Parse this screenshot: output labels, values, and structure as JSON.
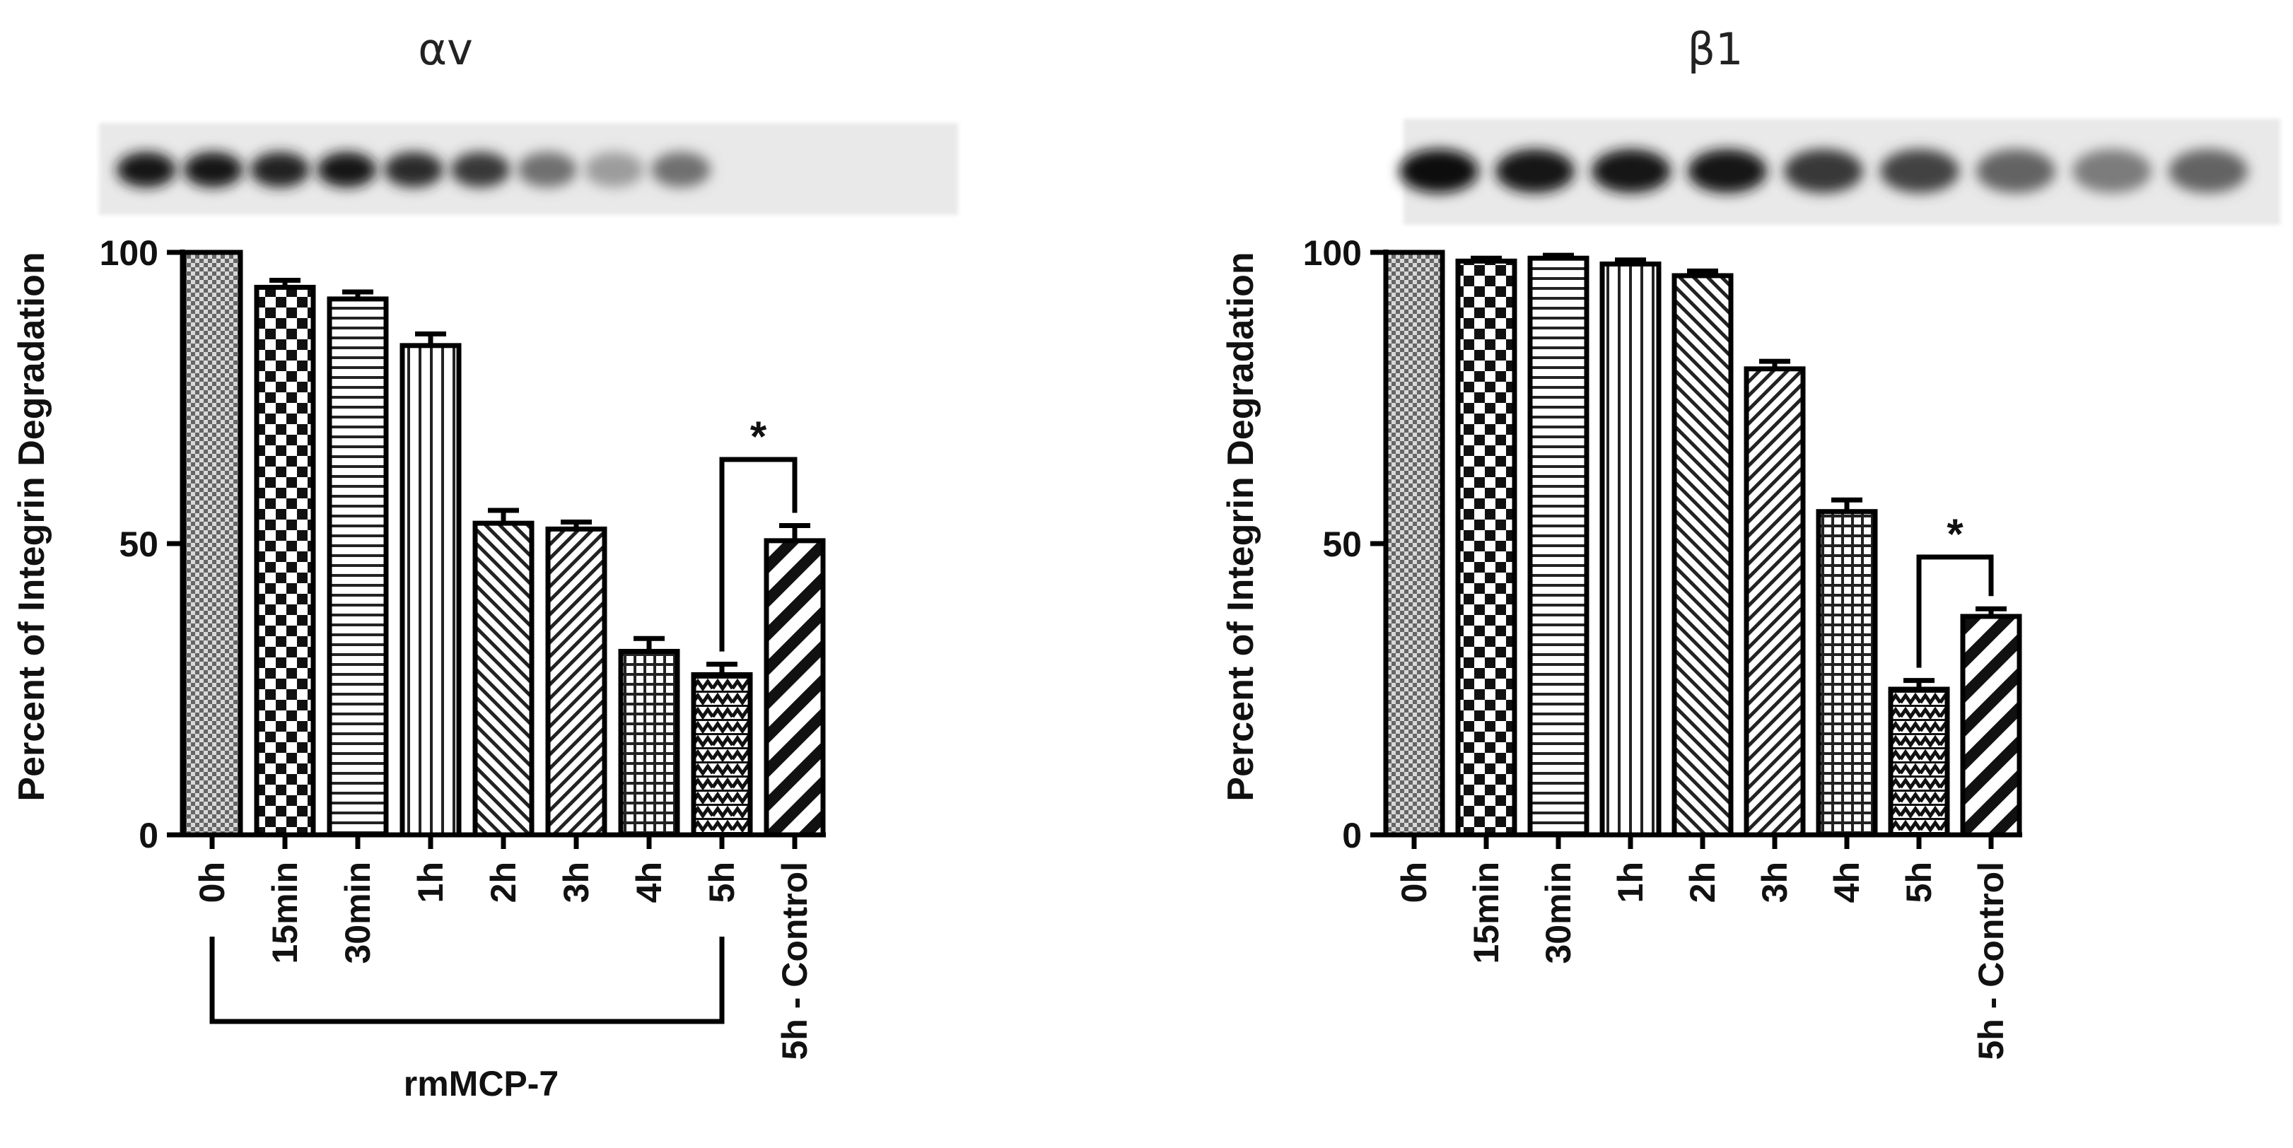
{
  "chart_data": [
    {
      "type": "bar",
      "title": "αv",
      "ylabel": "Percent of  Integrin Degradation",
      "xlabel": "",
      "ylim": [
        0,
        100
      ],
      "yticks": [
        0,
        50,
        100
      ],
      "categories": [
        "0h",
        "15min",
        "30min",
        "1h",
        "2h",
        "3h",
        "4h",
        "5h",
        "5h - Control"
      ],
      "values": [
        100,
        94,
        92,
        84,
        53.5,
        52.5,
        31.5,
        27.5,
        50.5
      ],
      "errors": [
        0,
        1.2,
        1.2,
        2,
        2.2,
        1.2,
        2.2,
        1.8,
        2.6
      ],
      "patterns": [
        "fine-check",
        "checker",
        "hlines",
        "vlines",
        "diag-left",
        "diag-right",
        "grid",
        "zigzag",
        "diag-bold"
      ],
      "significance": {
        "from": "5h",
        "to": "5h - Control",
        "label": "*"
      },
      "group_bracket": {
        "from": "0h",
        "to": "5h",
        "label": "rmMCP-7"
      },
      "blot": "western-blot-image",
      "blot_intensity": [
        0.95,
        0.95,
        0.9,
        0.95,
        0.85,
        0.8,
        0.55,
        0.35,
        0.55
      ]
    },
    {
      "type": "bar",
      "title": "β1",
      "ylabel": "Percent of  Integrin Degradation",
      "xlabel": "",
      "ylim": [
        0,
        100
      ],
      "yticks": [
        0,
        50,
        100
      ],
      "categories": [
        "0h",
        "15min",
        "30min",
        "1h",
        "2h",
        "3h",
        "4h",
        "5h",
        "5h - Control"
      ],
      "values": [
        100,
        98.5,
        99,
        98,
        96,
        80,
        55.5,
        25,
        37.5
      ],
      "errors": [
        0,
        0.5,
        0.5,
        0.7,
        0.8,
        1.3,
        2,
        1.5,
        1.3
      ],
      "patterns": [
        "fine-check",
        "checker",
        "hlines",
        "vlines",
        "diag-left",
        "diag-right",
        "grid",
        "zigzag",
        "diag-bold"
      ],
      "significance": {
        "from": "5h",
        "to": "5h - Control",
        "label": "*"
      },
      "blot": "western-blot-image",
      "blot_intensity": [
        1.0,
        0.95,
        0.95,
        0.95,
        0.8,
        0.75,
        0.6,
        0.5,
        0.6
      ]
    }
  ]
}
